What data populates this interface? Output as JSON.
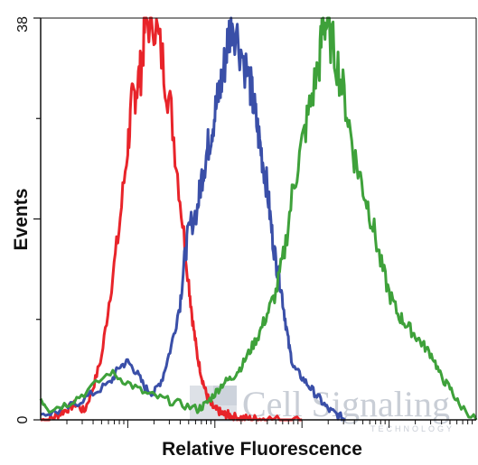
{
  "chart_data": {
    "type": "line",
    "title": "",
    "xlabel": "Relative Fluorescence",
    "ylabel": "Events",
    "xscale": "log",
    "xlim": [
      0,
      5
    ],
    "ylim": [
      0,
      38
    ],
    "y_tick_labels": [
      {
        "value": 0,
        "label": "0"
      },
      {
        "value": 38,
        "label": "38"
      }
    ],
    "y_minor_ticks": [
      9.5,
      19,
      28.5
    ],
    "x_major_ticks": [
      1,
      2,
      3,
      4
    ],
    "grid": false,
    "legend": "none",
    "series": [
      {
        "color": "#e8242a",
        "x": [
          0,
          0.1,
          0.2,
          0.3,
          0.4,
          0.5,
          0.6,
          0.7,
          0.8,
          0.9,
          1.0,
          1.05,
          1.1,
          1.15,
          1.2,
          1.3,
          1.4,
          1.5,
          1.6,
          1.7,
          1.75,
          1.8,
          1.85,
          1.9,
          1.95,
          2.0,
          2.05,
          2.1,
          2.15,
          2.2,
          2.3,
          2.4,
          2.5,
          2.6,
          2.8,
          3.0
        ],
        "y": [
          0,
          0,
          0.5,
          1.0,
          1.5,
          0.8,
          3.0,
          6.0,
          12.0,
          18.0,
          26.0,
          30.0,
          31.5,
          33.0,
          37.5,
          38.0,
          34.0,
          29.0,
          21.0,
          13.0,
          9.0,
          6.0,
          4.0,
          2.5,
          1.5,
          1.0,
          0.8,
          0.5,
          0.5,
          0.3,
          0.2,
          0.1,
          0.1,
          0.1,
          0,
          0
        ]
      },
      {
        "color": "#3a4fa8",
        "x": [
          0,
          0.2,
          0.4,
          0.6,
          0.8,
          0.9,
          1.0,
          1.1,
          1.2,
          1.3,
          1.4,
          1.5,
          1.6,
          1.65,
          1.7,
          1.8,
          1.85,
          1.9,
          1.95,
          2.0,
          2.05,
          2.1,
          2.15,
          2.2,
          2.3,
          2.4,
          2.45,
          2.5,
          2.55,
          2.6,
          2.65,
          2.7,
          2.75,
          2.8,
          2.85,
          2.9,
          3.0,
          3.1,
          3.2,
          3.3,
          3.4,
          3.5
        ],
        "y": [
          0.5,
          0.8,
          1.5,
          2.5,
          3.5,
          5.0,
          5.5,
          4.5,
          3.0,
          2.5,
          4.0,
          7.0,
          11.0,
          15.0,
          18.0,
          20.0,
          23.0,
          25.0,
          27.0,
          29.0,
          31.0,
          33.0,
          36.0,
          38.0,
          35.0,
          32.0,
          29.5,
          27.0,
          24.5,
          22.0,
          18.0,
          15.0,
          13.0,
          10.0,
          7.0,
          5.0,
          4.0,
          3.0,
          2.0,
          1.0,
          0.5,
          0
        ]
      },
      {
        "color": "#3ea13a",
        "x": [
          0,
          0.1,
          0.3,
          0.5,
          0.8,
          1.0,
          1.2,
          1.4,
          1.6,
          1.8,
          1.9,
          2.0,
          2.1,
          2.2,
          2.3,
          2.4,
          2.5,
          2.6,
          2.7,
          2.8,
          2.9,
          3.0,
          3.1,
          3.2,
          3.25,
          3.3,
          3.4,
          3.5,
          3.6,
          3.7,
          3.8,
          3.9,
          4.0,
          4.1,
          4.2,
          4.3,
          4.4,
          4.5,
          4.6,
          4.7,
          4.8,
          5.0
        ],
        "y": [
          2.0,
          1.0,
          1.5,
          2.5,
          4.5,
          3.5,
          2.5,
          2.0,
          1.5,
          1.0,
          1.5,
          2.5,
          3.5,
          4.0,
          5.0,
          6.5,
          8.0,
          10.0,
          12.0,
          16.0,
          22.0,
          26.0,
          30.0,
          34.0,
          38.0,
          37.0,
          34.0,
          30.0,
          25.0,
          22.0,
          19.0,
          15.0,
          12.0,
          10.0,
          9.0,
          8.0,
          7.0,
          6.0,
          4.0,
          3.0,
          1.5,
          0
        ]
      }
    ]
  },
  "watermark": {
    "main": "Cell Signaling",
    "sub": "TECHNOLOGY"
  }
}
